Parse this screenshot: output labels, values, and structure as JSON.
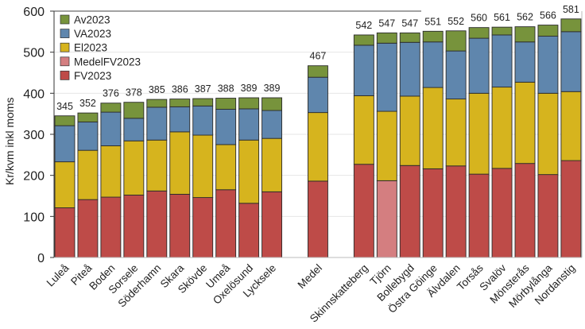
{
  "chart_data": {
    "type": "bar",
    "stacked": true,
    "title": "",
    "xlabel": "",
    "ylabel": "Kr/kvm inkl moms",
    "ylim": [
      0,
      600
    ],
    "yticks": [
      0,
      100,
      200,
      300,
      400,
      500,
      600
    ],
    "grid": true,
    "legend_position": "top-left",
    "legend": [
      {
        "name": "Av2023",
        "color": "#77933C"
      },
      {
        "name": "VA2023",
        "color": "#5F86AD"
      },
      {
        "name": "El2023",
        "color": "#D6B41E"
      },
      {
        "name": "MedelFV2023",
        "color": "#D47E80"
      },
      {
        "name": "FV2023",
        "color": "#BE4B48"
      }
    ],
    "categories": [
      "Luleå",
      "Piteå",
      "Boden",
      "Sorsele",
      "Söderhamn",
      "Skara",
      "Skövde",
      "Umeå",
      "Oxelösund",
      "Lycksele",
      "",
      "Medel",
      "",
      "Skinnskatteberg",
      "Tjörn",
      "Bollebygd",
      "Östra Göinge",
      "Älvdalen",
      "Torsås",
      "Svalöv",
      "Mönsterås",
      "Mörbylånga",
      "Nordanstig"
    ],
    "series": [
      {
        "name": "FV2023",
        "color": "#BE4B48",
        "values": [
          121,
          141,
          147,
          152,
          162,
          154,
          146,
          165,
          132,
          160,
          null,
          186,
          null,
          227,
          null,
          224,
          216,
          223,
          203,
          217,
          229,
          202,
          236
        ]
      },
      {
        "name": "MedelFV2023",
        "color": "#D47E80",
        "values": [
          null,
          null,
          null,
          null,
          null,
          null,
          null,
          null,
          null,
          null,
          null,
          null,
          null,
          null,
          187,
          null,
          null,
          null,
          null,
          null,
          null,
          null,
          null
        ]
      },
      {
        "name": "El2023",
        "color": "#D6B41E",
        "values": [
          112,
          120,
          125,
          132,
          124,
          152,
          152,
          110,
          154,
          130,
          null,
          167,
          null,
          167,
          169,
          169,
          198,
          163,
          197,
          198,
          198,
          198,
          168
        ]
      },
      {
        "name": "VA2023",
        "color": "#5F86AD",
        "values": [
          88,
          69,
          82,
          55,
          80,
          61,
          71,
          86,
          76,
          68,
          null,
          86,
          null,
          123,
          166,
          131,
          111,
          117,
          134,
          127,
          98,
          139,
          146
        ]
      },
      {
        "name": "Av2023",
        "color": "#77933C",
        "values": [
          24,
          22,
          22,
          39,
          19,
          19,
          18,
          27,
          27,
          31,
          null,
          28,
          null,
          25,
          25,
          23,
          26,
          49,
          26,
          19,
          37,
          27,
          31
        ]
      }
    ],
    "totals": [
      "345",
      "352",
      "376",
      "378",
      "385",
      "386",
      "387",
      "388",
      "389",
      "389",
      "",
      "467",
      "",
      "542",
      "547",
      "547",
      "551",
      "552",
      "560",
      "561",
      "562",
      "566",
      "581"
    ]
  }
}
